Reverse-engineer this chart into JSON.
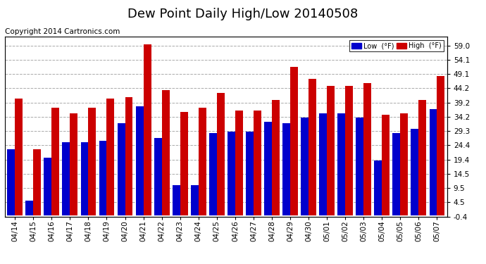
{
  "title": "Dew Point Daily High/Low 20140508",
  "copyright": "Copyright 2014 Cartronics.com",
  "legend_low": "Low  (°F)",
  "legend_high": "High  (°F)",
  "background_color": "#ffffff",
  "plot_bg_color": "#ffffff",
  "grid_color": "#aaaaaa",
  "bar_width": 0.42,
  "ylim": [
    -0.4,
    62.0
  ],
  "yticks": [
    -0.4,
    4.5,
    9.5,
    14.5,
    19.4,
    24.4,
    29.3,
    34.2,
    39.2,
    44.2,
    49.1,
    54.1,
    59.0
  ],
  "dates": [
    "04/14",
    "04/15",
    "04/16",
    "04/17",
    "04/18",
    "04/19",
    "04/20",
    "04/21",
    "04/22",
    "04/23",
    "04/24",
    "04/25",
    "04/26",
    "04/27",
    "04/28",
    "04/29",
    "04/30",
    "05/01",
    "05/02",
    "05/03",
    "05/04",
    "05/05",
    "05/06",
    "05/07"
  ],
  "low_values": [
    23.0,
    5.0,
    20.0,
    25.5,
    25.5,
    26.0,
    32.0,
    38.0,
    27.0,
    10.5,
    10.5,
    28.5,
    29.0,
    29.0,
    32.5,
    32.0,
    34.0,
    35.5,
    35.5,
    34.0,
    19.0,
    28.5,
    30.0,
    37.0
  ],
  "high_values": [
    40.5,
    23.0,
    37.5,
    35.5,
    37.5,
    40.5,
    41.0,
    59.5,
    43.5,
    36.0,
    37.5,
    42.5,
    36.5,
    36.5,
    40.0,
    51.5,
    47.5,
    45.0,
    45.0,
    46.0,
    35.0,
    35.5,
    40.0,
    48.5
  ],
  "low_color": "#0000cc",
  "high_color": "#cc0000",
  "title_fontsize": 13,
  "tick_fontsize": 7.5,
  "copyright_fontsize": 7.5
}
